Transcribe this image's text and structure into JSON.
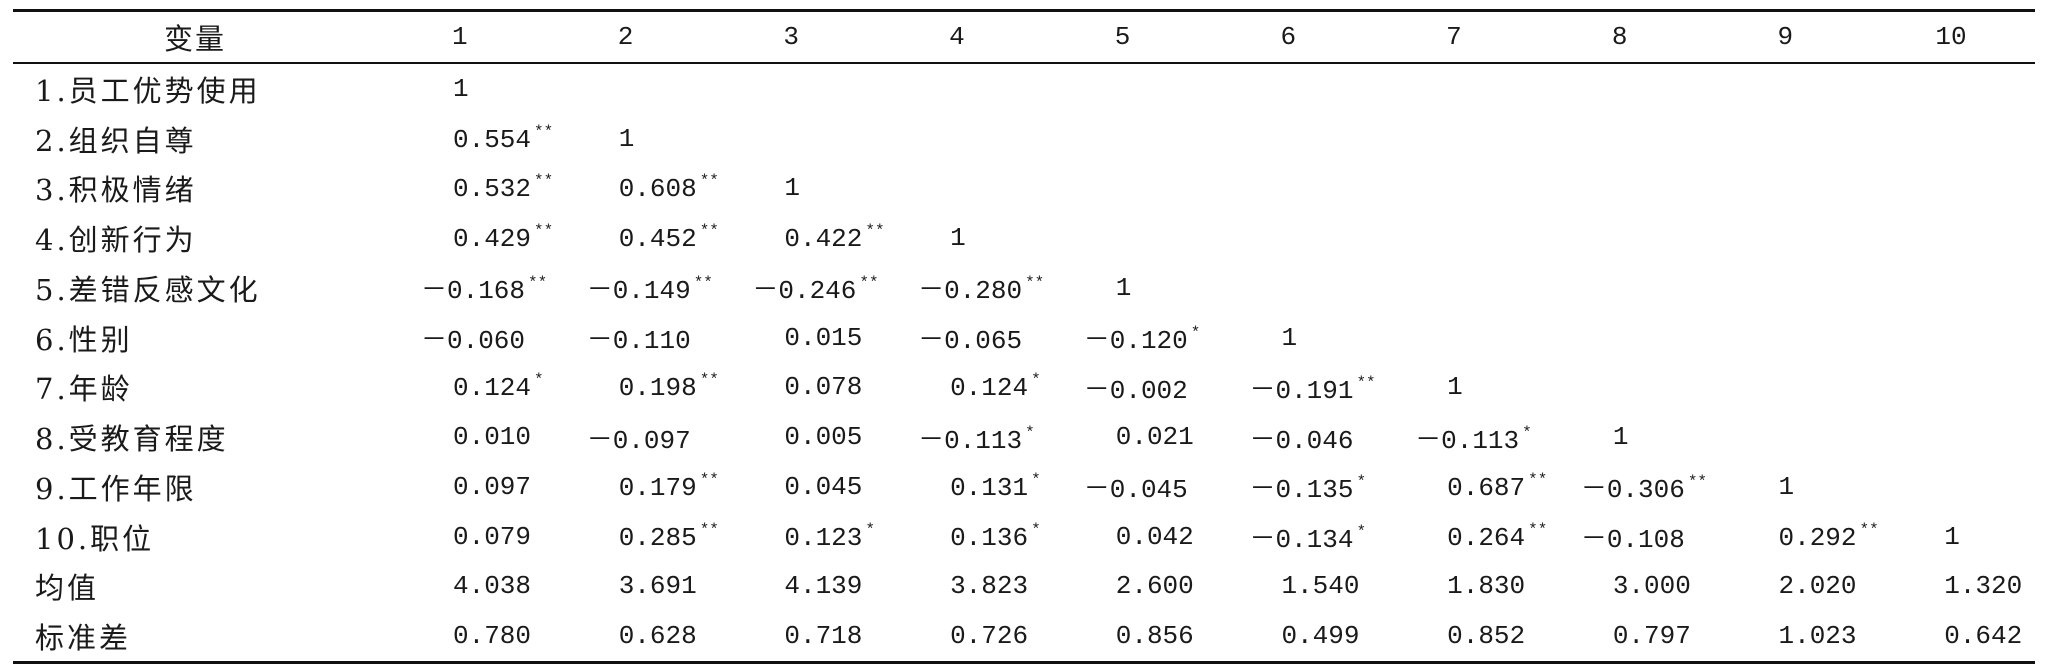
{
  "table": {
    "header": {
      "variable_label": "变量",
      "columns": [
        "1",
        "2",
        "3",
        "4",
        "5",
        "6",
        "7",
        "8",
        "9",
        "10"
      ]
    },
    "rows": [
      {
        "label": "1.员工优势使用",
        "cells": [
          {
            "v": "1"
          }
        ]
      },
      {
        "label": "2.组织自尊",
        "cells": [
          {
            "v": "0.554",
            "sig": "**"
          },
          {
            "v": "1"
          }
        ]
      },
      {
        "label": "3.积极情绪",
        "cells": [
          {
            "v": "0.532",
            "sig": "**"
          },
          {
            "v": "0.608",
            "sig": "**"
          },
          {
            "v": "1"
          }
        ]
      },
      {
        "label": "4.创新行为",
        "cells": [
          {
            "v": "0.429",
            "sig": "**"
          },
          {
            "v": "0.452",
            "sig": "**"
          },
          {
            "v": "0.422",
            "sig": "**"
          },
          {
            "v": "1"
          }
        ]
      },
      {
        "label": "5.差错反感文化",
        "cells": [
          {
            "v": "－0.168",
            "sig": "**"
          },
          {
            "v": "－0.149",
            "sig": "**"
          },
          {
            "v": "－0.246",
            "sig": "**"
          },
          {
            "v": "－0.280",
            "sig": "**"
          },
          {
            "v": "1"
          }
        ]
      },
      {
        "label": "6.性别",
        "cells": [
          {
            "v": "－0.060"
          },
          {
            "v": "－0.110"
          },
          {
            "v": "0.015"
          },
          {
            "v": "－0.065"
          },
          {
            "v": "－0.120",
            "sig": "*"
          },
          {
            "v": "1"
          }
        ]
      },
      {
        "label": "7.年龄",
        "cells": [
          {
            "v": "0.124",
            "sig": "*"
          },
          {
            "v": "0.198",
            "sig": "**"
          },
          {
            "v": "0.078"
          },
          {
            "v": "0.124",
            "sig": "*"
          },
          {
            "v": "－0.002"
          },
          {
            "v": "－0.191",
            "sig": "**"
          },
          {
            "v": "1"
          }
        ]
      },
      {
        "label": "8.受教育程度",
        "cells": [
          {
            "v": "0.010"
          },
          {
            "v": "－0.097"
          },
          {
            "v": "0.005"
          },
          {
            "v": "－0.113",
            "sig": "*"
          },
          {
            "v": "0.021"
          },
          {
            "v": "－0.046"
          },
          {
            "v": "－0.113",
            "sig": "*"
          },
          {
            "v": "1"
          }
        ]
      },
      {
        "label": "9.工作年限",
        "cells": [
          {
            "v": "0.097"
          },
          {
            "v": "0.179",
            "sig": "**"
          },
          {
            "v": "0.045"
          },
          {
            "v": "0.131",
            "sig": "*"
          },
          {
            "v": "－0.045"
          },
          {
            "v": "－0.135",
            "sig": "*"
          },
          {
            "v": "0.687",
            "sig": "**"
          },
          {
            "v": "－0.306",
            "sig": "**"
          },
          {
            "v": "1"
          }
        ]
      },
      {
        "label": "10.职位",
        "cells": [
          {
            "v": "0.079"
          },
          {
            "v": "0.285",
            "sig": "**"
          },
          {
            "v": "0.123",
            "sig": "*"
          },
          {
            "v": "0.136",
            "sig": "*"
          },
          {
            "v": "0.042"
          },
          {
            "v": "－0.134",
            "sig": "*"
          },
          {
            "v": "0.264",
            "sig": "**"
          },
          {
            "v": "－0.108"
          },
          {
            "v": "0.292",
            "sig": "**"
          },
          {
            "v": "1"
          }
        ]
      },
      {
        "label": "均值",
        "cells": [
          {
            "v": "4.038"
          },
          {
            "v": "3.691"
          },
          {
            "v": "4.139"
          },
          {
            "v": "3.823"
          },
          {
            "v": "2.600"
          },
          {
            "v": "1.540"
          },
          {
            "v": "1.830"
          },
          {
            "v": "3.000"
          },
          {
            "v": "2.020"
          },
          {
            "v": "1.320"
          }
        ]
      },
      {
        "label": "标准差",
        "cells": [
          {
            "v": "0.780"
          },
          {
            "v": "0.628"
          },
          {
            "v": "0.718"
          },
          {
            "v": "0.726"
          },
          {
            "v": "0.856"
          },
          {
            "v": "0.499"
          },
          {
            "v": "0.852"
          },
          {
            "v": "0.797"
          },
          {
            "v": "1.023"
          },
          {
            "v": "0.642"
          }
        ]
      }
    ]
  }
}
